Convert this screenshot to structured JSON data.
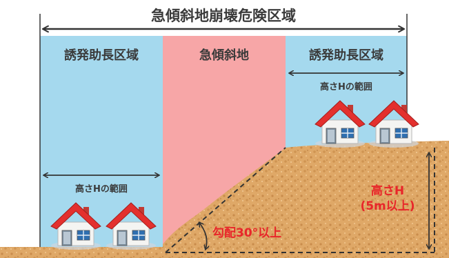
{
  "title": "急傾斜地崩壊危険区域",
  "zones": {
    "left_label": "誘発助長区域",
    "center_label": "急傾斜地",
    "right_label": "誘発助長区域"
  },
  "height_range": {
    "right_label": "高さHの範囲",
    "left_label": "高さHの範囲"
  },
  "slope": {
    "gradient_label": "勾配30°以上",
    "height_label_line1": "高さH",
    "height_label_line2": "(5m以上)"
  },
  "colors": {
    "zone_blue": "#a5d9ee",
    "zone_pink": "#f7a6a7",
    "soil": "#dfa867",
    "label_red": "#e8262a",
    "arrow": "#333333"
  }
}
